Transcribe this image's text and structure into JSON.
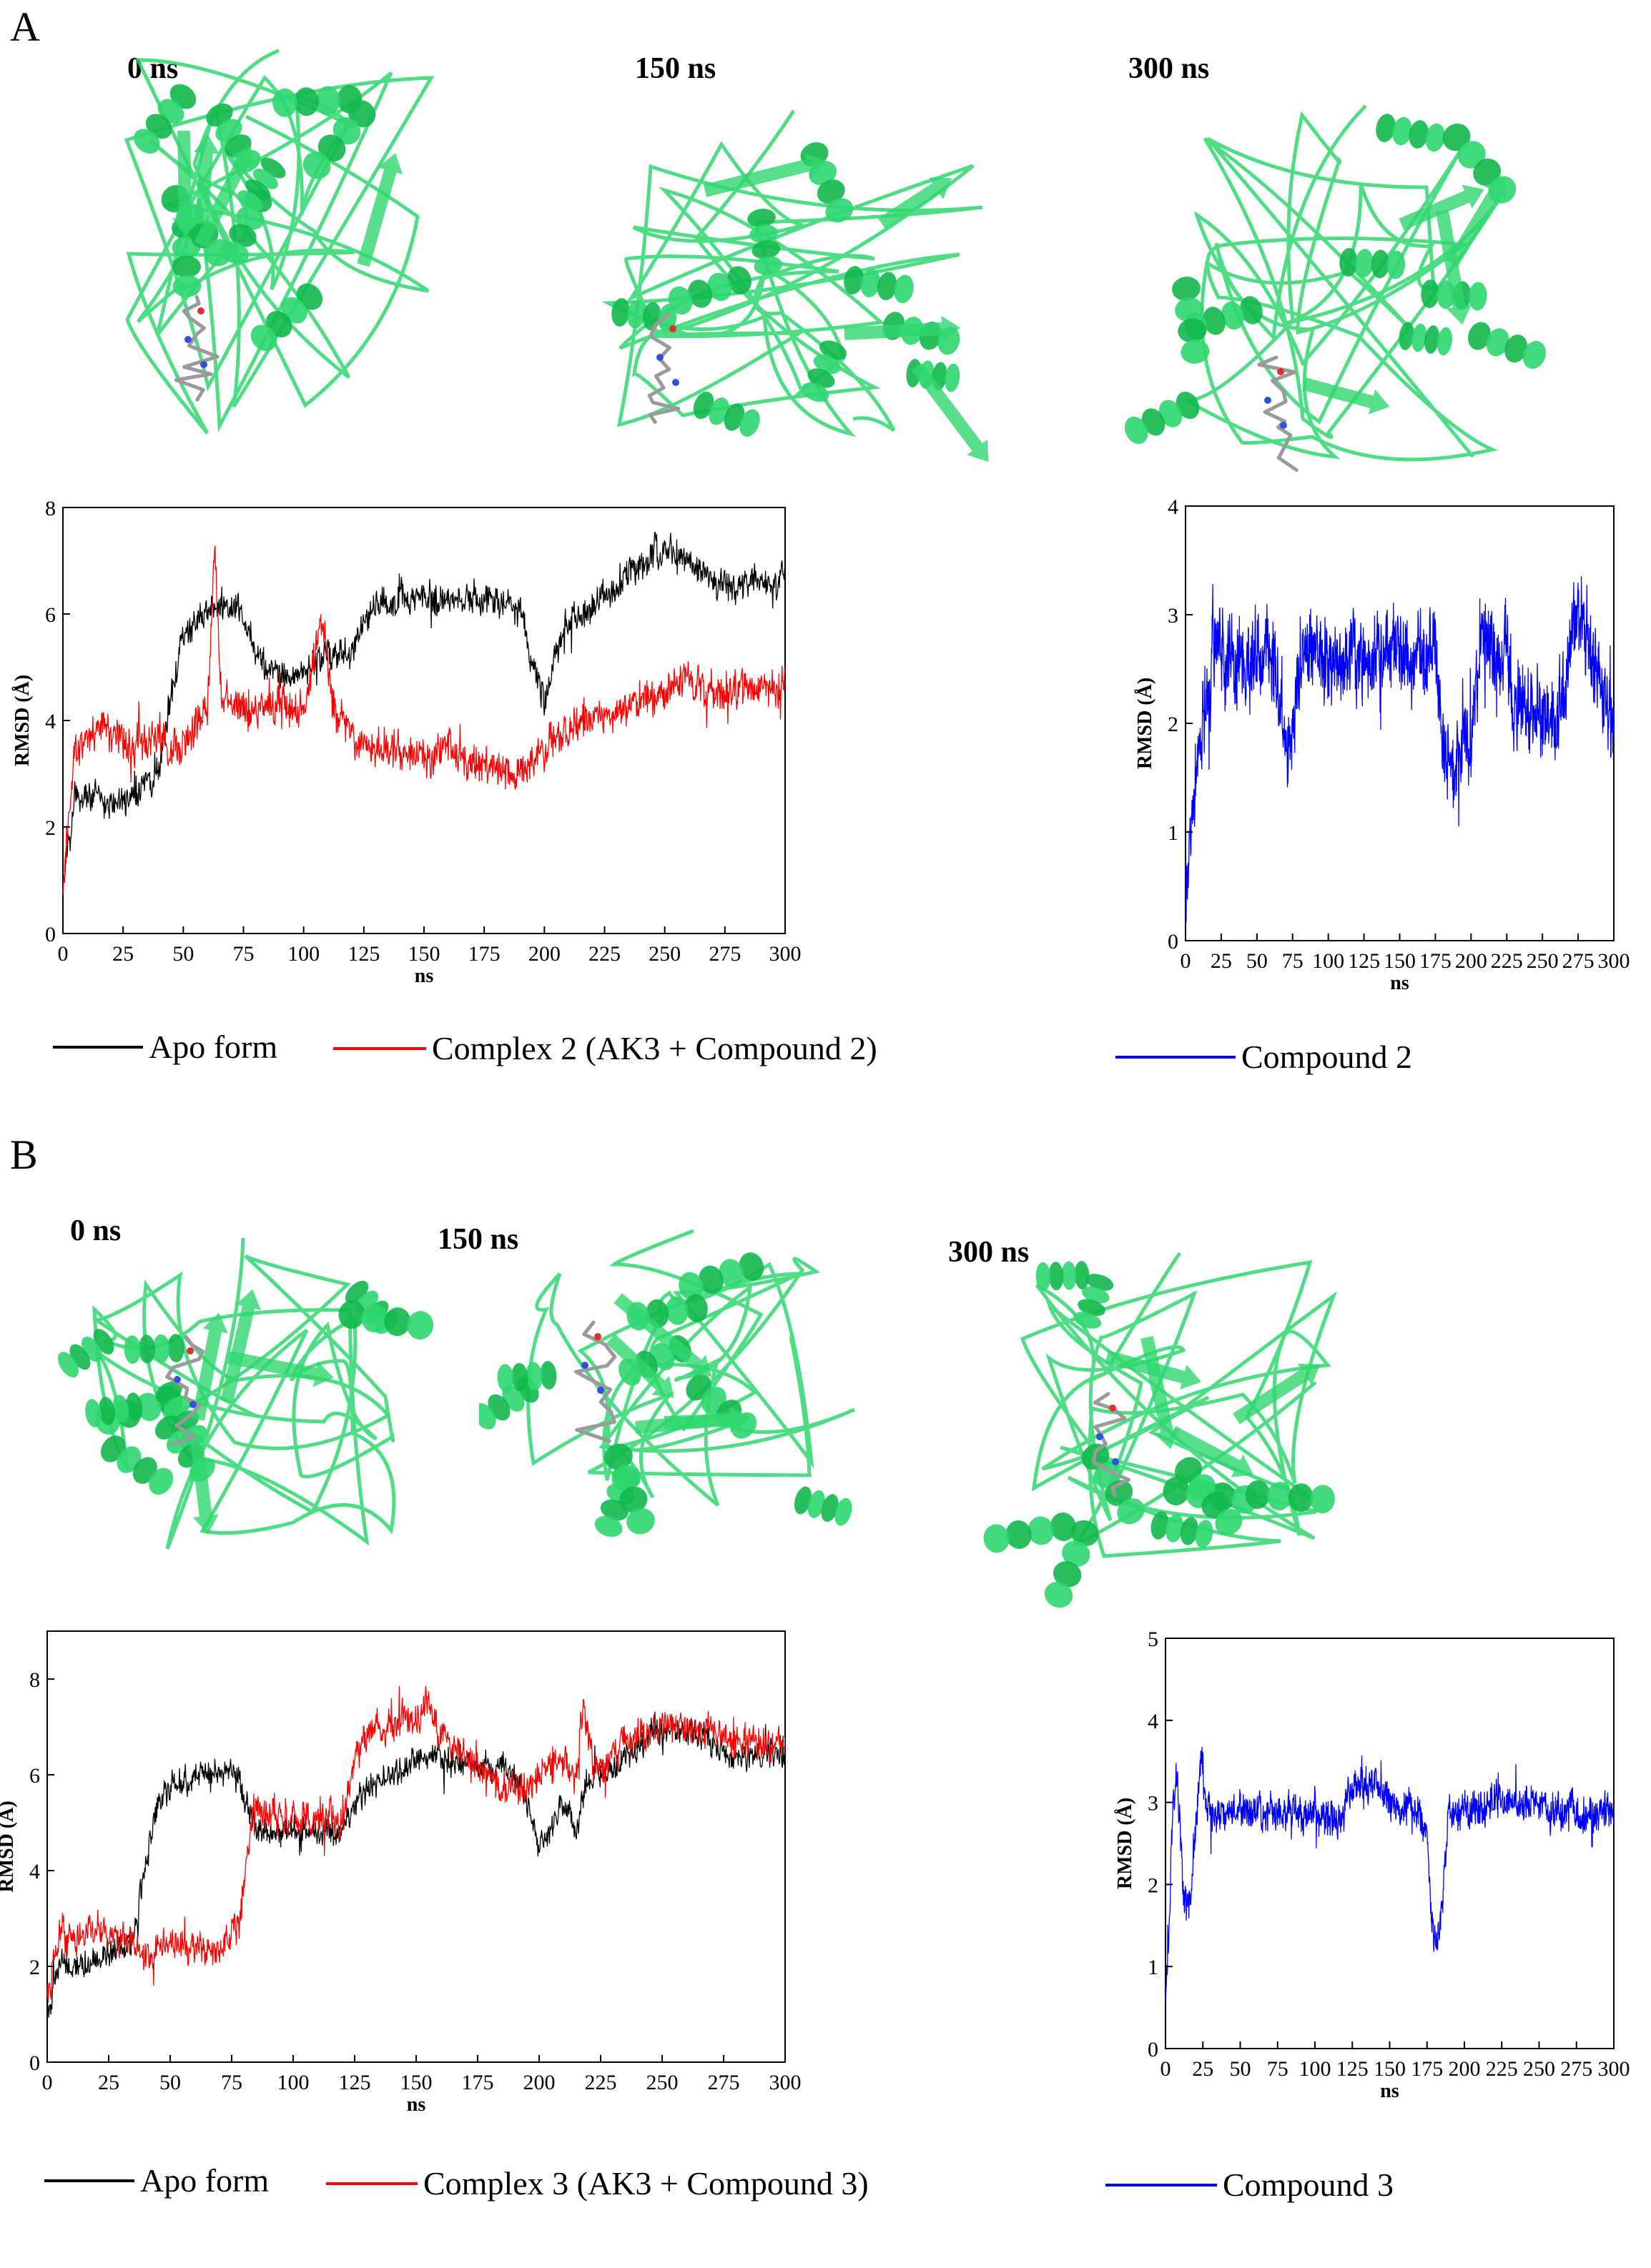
{
  "panelA": {
    "letter": "A",
    "frames": [
      {
        "label": "0 ns",
        "image": "protein-structure-0ns-a"
      },
      {
        "label": "150 ns",
        "image": "protein-structure-150ns-a"
      },
      {
        "label": "300 ns",
        "image": "protein-structure-300ns-a"
      }
    ],
    "legend": {
      "apo": "Apo form",
      "complex": "Complex 2 (AK3 + Compound 2)",
      "ligand": "Compound 2"
    }
  },
  "panelB": {
    "letter": "B",
    "frames": [
      {
        "label": "0 ns",
        "image": "protein-structure-0ns-b"
      },
      {
        "label": "150 ns",
        "image": "protein-structure-150ns-b"
      },
      {
        "label": "300 ns",
        "image": "protein-structure-300ns-b"
      }
    ],
    "legend": {
      "apo": "Apo form",
      "complex": "Complex 3 (AK3 + Compound 3)",
      "ligand": "Compound 3"
    }
  },
  "colors": {
    "apo": "#000000",
    "complex": "#ff0000",
    "ligand": "#0000ff",
    "protein": "#2fd66f",
    "protein_dark": "#12b84e"
  },
  "chart_data": [
    {
      "id": "A-complex",
      "type": "line",
      "xlabel": "ns",
      "ylabel": "RMSD (Å)",
      "xlim": [
        0,
        300
      ],
      "ylim": [
        0,
        8
      ],
      "xticks": [
        0,
        25,
        50,
        75,
        100,
        125,
        150,
        175,
        200,
        225,
        250,
        275,
        300
      ],
      "yticks": [
        0,
        2,
        4,
        6,
        8
      ],
      "series": [
        {
          "name": "Apo form",
          "color": "#000000",
          "noise": 0.45,
          "x": [
            0,
            5,
            10,
            20,
            30,
            40,
            45,
            50,
            55,
            60,
            65,
            70,
            75,
            80,
            90,
            100,
            110,
            120,
            125,
            130,
            140,
            150,
            170,
            190,
            195,
            200,
            205,
            210,
            215,
            220,
            230,
            240,
            250,
            260,
            270,
            280,
            300
          ],
          "y": [
            1.0,
            2.5,
            2.7,
            2.4,
            2.6,
            3.0,
            4.6,
            5.4,
            5.9,
            6.1,
            6.2,
            6.1,
            5.9,
            5.2,
            4.8,
            4.9,
            5.3,
            5.2,
            5.8,
            6.2,
            6.3,
            6.3,
            6.3,
            6.1,
            5.1,
            4.3,
            5.2,
            5.9,
            5.9,
            6.2,
            6.5,
            7.0,
            7.2,
            7.0,
            6.6,
            6.5,
            6.7
          ]
        },
        {
          "name": "Complex 2 (AK3 + Compound 2)",
          "color": "#ff0000",
          "noise": 0.55,
          "x": [
            0,
            5,
            10,
            20,
            30,
            40,
            50,
            55,
            60,
            63,
            66,
            70,
            80,
            90,
            100,
            108,
            112,
            120,
            130,
            140,
            150,
            160,
            170,
            180,
            190,
            200,
            210,
            220,
            230,
            240,
            250,
            260,
            270,
            280,
            300
          ],
          "y": [
            0.9,
            3.4,
            3.8,
            3.8,
            3.5,
            3.7,
            3.4,
            4.0,
            4.2,
            7.2,
            4.4,
            4.2,
            4.2,
            4.3,
            4.2,
            6.0,
            4.3,
            3.7,
            3.5,
            3.4,
            3.3,
            3.6,
            3.2,
            3.1,
            3.0,
            3.4,
            3.9,
            4.0,
            4.2,
            4.4,
            4.5,
            4.8,
            4.4,
            4.6,
            4.6
          ]
        }
      ]
    },
    {
      "id": "A-ligand",
      "type": "line",
      "xlabel": "ns",
      "ylabel": "RMSD (Å)",
      "xlim": [
        0,
        300
      ],
      "ylim": [
        0,
        4
      ],
      "xticks": [
        0,
        25,
        50,
        75,
        100,
        125,
        150,
        175,
        200,
        225,
        250,
        275,
        300
      ],
      "yticks": [
        0,
        1,
        2,
        3,
        4
      ],
      "series": [
        {
          "name": "Compound 2",
          "color": "#0000ff",
          "noise": 0.6,
          "x": [
            0,
            5,
            10,
            15,
            20,
            30,
            40,
            50,
            60,
            65,
            70,
            75,
            80,
            90,
            100,
            110,
            120,
            130,
            140,
            150,
            160,
            170,
            175,
            180,
            185,
            190,
            195,
            200,
            205,
            210,
            220,
            225,
            230,
            240,
            250,
            260,
            265,
            270,
            275,
            280,
            290,
            300
          ],
          "y": [
            0.5,
            1.2,
            1.9,
            2.3,
            2.6,
            2.6,
            2.5,
            2.6,
            2.7,
            2.3,
            1.6,
            1.9,
            2.5,
            2.7,
            2.6,
            2.6,
            2.6,
            2.6,
            2.6,
            2.6,
            2.6,
            2.6,
            2.8,
            1.8,
            1.5,
            1.6,
            2.0,
            1.9,
            2.6,
            2.9,
            2.6,
            2.8,
            2.2,
            2.1,
            2.1,
            2.1,
            2.2,
            2.7,
            3.1,
            2.8,
            2.4,
            1.9
          ]
        }
      ]
    },
    {
      "id": "B-complex",
      "type": "line",
      "xlabel": "ns",
      "ylabel": "RMSD (Å)",
      "xlim": [
        0,
        300
      ],
      "ylim": [
        0,
        9
      ],
      "xticks": [
        0,
        25,
        50,
        75,
        100,
        125,
        150,
        175,
        200,
        225,
        250,
        275,
        300
      ],
      "yticks": [
        0,
        2,
        4,
        6,
        8
      ],
      "series": [
        {
          "name": "Apo form",
          "color": "#000000",
          "noise": 0.45,
          "x": [
            0,
            5,
            10,
            20,
            30,
            35,
            40,
            45,
            50,
            60,
            70,
            75,
            80,
            85,
            90,
            100,
            110,
            120,
            125,
            130,
            140,
            150,
            160,
            170,
            180,
            190,
            195,
            200,
            205,
            210,
            215,
            220,
            230,
            240,
            250,
            260,
            270,
            280,
            290,
            300
          ],
          "y": [
            1.0,
            2.1,
            2.0,
            2.1,
            2.4,
            2.6,
            4.2,
            5.3,
            5.8,
            6.0,
            6.0,
            6.1,
            5.6,
            4.8,
            4.8,
            4.8,
            4.8,
            4.8,
            5.4,
            5.7,
            6.0,
            6.3,
            6.4,
            6.2,
            6.2,
            6.1,
            5.4,
            4.5,
            4.9,
            5.4,
            4.8,
            6.0,
            6.2,
            6.6,
            7.0,
            6.9,
            6.7,
            6.3,
            6.4,
            6.5
          ]
        },
        {
          "name": "Complex 3 (AK3 + Compound 3)",
          "color": "#ff0000",
          "noise": 0.55,
          "x": [
            0,
            5,
            10,
            20,
            30,
            40,
            50,
            60,
            70,
            78,
            82,
            85,
            90,
            100,
            110,
            120,
            125,
            130,
            140,
            150,
            155,
            160,
            170,
            180,
            190,
            200,
            210,
            215,
            218,
            222,
            230,
            240,
            250,
            260,
            270,
            280,
            290,
            300
          ],
          "y": [
            1.2,
            2.8,
            2.4,
            2.8,
            2.6,
            2.3,
            2.4,
            2.4,
            2.4,
            2.8,
            4.8,
            5.3,
            5.1,
            5.1,
            5.1,
            5.1,
            6.3,
            6.9,
            7.1,
            7.2,
            7.6,
            6.8,
            6.4,
            5.9,
            5.6,
            6.0,
            6.3,
            6.1,
            7.4,
            6.2,
            6.5,
            6.8,
            7.0,
            7.0,
            6.9,
            6.7,
            6.6,
            6.6
          ]
        }
      ]
    },
    {
      "id": "B-ligand",
      "type": "line",
      "xlabel": "ns",
      "ylabel": "RMSD (Å)",
      "xlim": [
        0,
        300
      ],
      "ylim": [
        0,
        5
      ],
      "xticks": [
        0,
        25,
        50,
        75,
        100,
        125,
        150,
        175,
        200,
        225,
        250,
        275,
        300
      ],
      "yticks": [
        0,
        1,
        2,
        3,
        4,
        5
      ],
      "series": [
        {
          "name": "Compound 3",
          "color": "#0000ff",
          "noise": 0.35,
          "x": [
            0,
            2,
            5,
            8,
            12,
            16,
            20,
            24,
            26,
            30,
            40,
            60,
            80,
            100,
            110,
            118,
            122,
            130,
            140,
            150,
            160,
            170,
            175,
            178,
            182,
            186,
            190,
            200,
            210,
            220,
            230,
            240,
            250,
            260,
            270,
            280,
            290,
            300
          ],
          "y": [
            0.5,
            1.4,
            3.0,
            3.3,
            1.8,
            1.6,
            2.6,
            3.6,
            3.1,
            2.9,
            2.9,
            2.9,
            2.9,
            2.9,
            2.8,
            2.7,
            3.2,
            3.2,
            3.2,
            3.0,
            2.9,
            2.9,
            2.6,
            1.5,
            1.3,
            2.0,
            2.9,
            2.9,
            2.9,
            3.0,
            3.0,
            3.0,
            3.0,
            2.9,
            2.9,
            2.8,
            2.9,
            2.9
          ]
        }
      ]
    }
  ]
}
